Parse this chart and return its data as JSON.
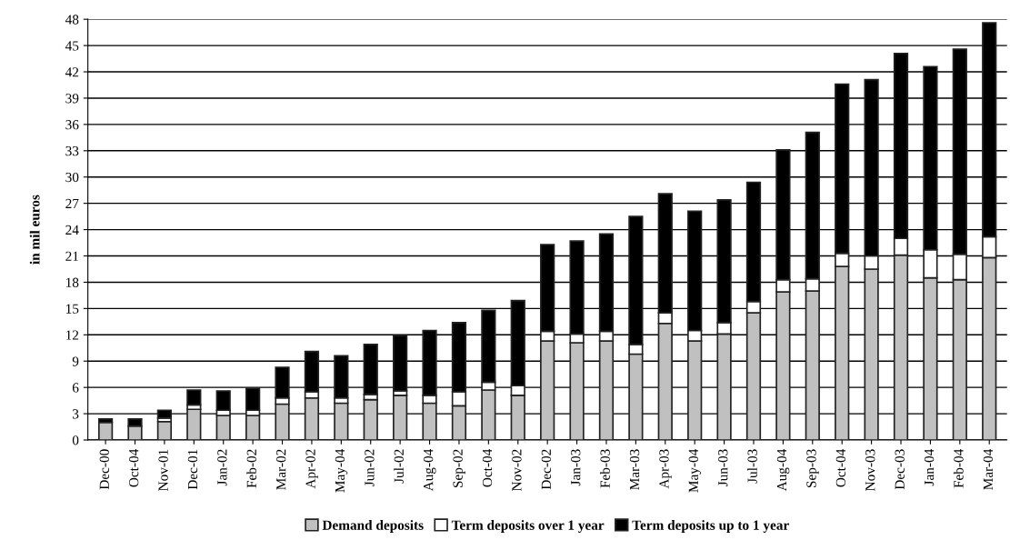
{
  "chart_data": {
    "type": "bar",
    "stacked": true,
    "ylabel": "in mil euros",
    "categories": [
      "Dec-00",
      "Oct-04",
      "Nov-01",
      "Dec-01",
      "Jan-02",
      "Feb-02",
      "Mar-02",
      "Apr-02",
      "May-04",
      "Jun-02",
      "Jul-02",
      "Aug-04",
      "Sep-02",
      "Oct-04",
      "Nov-02",
      "Dec-02",
      "Jan-03",
      "Feb-03",
      "Mar-03",
      "Apr-03",
      "May-04",
      "Jun-03",
      "Jul-03",
      "Aug-04",
      "Sep-03",
      "Oct-04",
      "Nov-03",
      "Dec-03",
      "Jan-04",
      "Feb-04",
      "Mar-04"
    ],
    "series": [
      {
        "name": "Demand deposits",
        "color": "#c0c0c0",
        "values": [
          2.0,
          1.6,
          2.1,
          3.5,
          2.8,
          2.8,
          4.1,
          4.8,
          4.2,
          4.6,
          5.1,
          4.2,
          3.9,
          5.7,
          5.1,
          11.3,
          11.1,
          11.3,
          9.8,
          13.3,
          11.3,
          12.1,
          14.5,
          16.9,
          17.0,
          19.8,
          19.5,
          21.1,
          18.5,
          18.3,
          20.8
        ]
      },
      {
        "name": "Term deposits over 1 year",
        "color": "#ffffff",
        "values": [
          null,
          null,
          0.4,
          0.5,
          0.6,
          0.6,
          0.7,
          0.7,
          0.6,
          0.6,
          0.5,
          0.9,
          1.6,
          0.9,
          1.1,
          1.1,
          1.0,
          1.1,
          1.1,
          1.2,
          1.2,
          1.3,
          1.3,
          1.4,
          1.4,
          1.5,
          1.5,
          1.9,
          3.2,
          2.9,
          2.4
        ]
      },
      {
        "name": "Term deposits up to 1 year",
        "color": "#000000",
        "values": [
          0.4,
          0.8,
          0.9,
          1.7,
          2.2,
          2.5,
          3.5,
          4.6,
          4.8,
          5.7,
          6.3,
          7.4,
          7.9,
          8.2,
          9.7,
          9.9,
          10.6,
          11.1,
          14.6,
          13.6,
          13.6,
          14.0,
          13.6,
          14.8,
          16.7,
          19.3,
          20.1,
          21.1,
          20.9,
          23.4,
          24.4
        ]
      }
    ],
    "ylim": [
      0,
      48
    ],
    "yticks": [
      0,
      3,
      6,
      9,
      12,
      15,
      18,
      21,
      24,
      27,
      30,
      33,
      36,
      39,
      42,
      45,
      48
    ],
    "grid": "y",
    "legend": "bottom"
  }
}
